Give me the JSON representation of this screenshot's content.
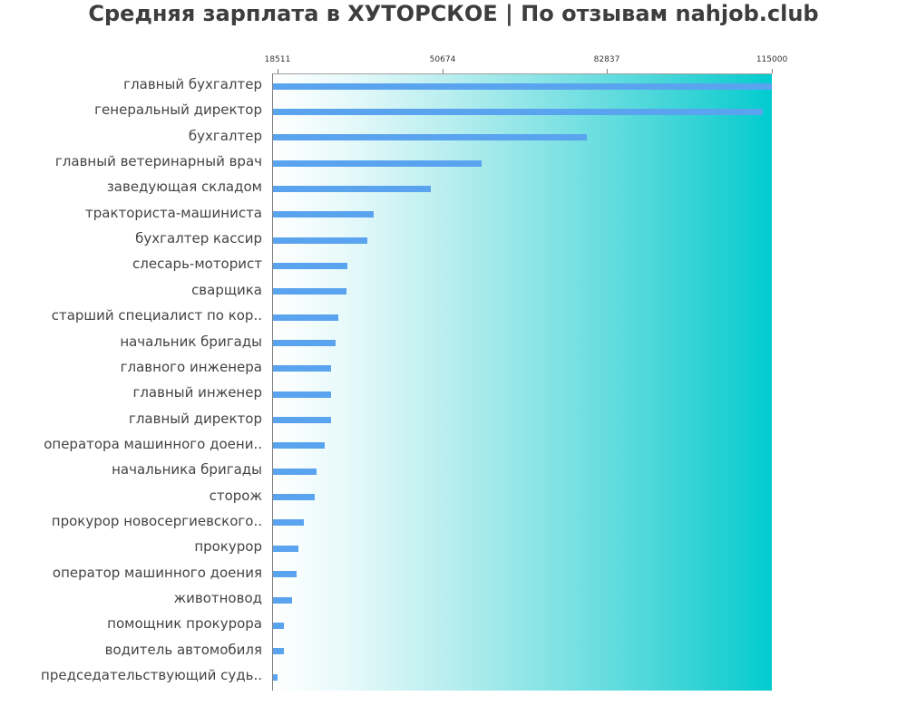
{
  "title": "Средняя зарплата в ХУТОРСКОЕ | По отзывам nahjob.club",
  "colors": {
    "bar": "#5aa4ef",
    "gradient_start": "#ffffff",
    "gradient_end": "#00cccf",
    "axis": "#808080",
    "label_text": "#444444",
    "title_text": "#3d3d3d"
  },
  "axis": {
    "ticks": [
      {
        "label": "18511",
        "value": 18511
      },
      {
        "label": "50674",
        "value": 50674
      },
      {
        "label": "82837",
        "value": 82837
      },
      {
        "label": "115000",
        "value": 115000
      }
    ]
  },
  "chart_data": {
    "type": "bar",
    "orientation": "horizontal",
    "title": "Средняя зарплата в ХУТОРСКОЕ | По отзывам nahjob.club",
    "xlabel": "",
    "ylabel": "",
    "xlim": [
      17450,
      115000
    ],
    "x_ticks": [
      18511,
      50674,
      82837,
      115000
    ],
    "grid": false,
    "legend": null,
    "categories": [
      "главный бухгалтер",
      "генеральный директор",
      "бухгалтер",
      "главный ветеринарный врач",
      "заведующая складом",
      "тракториста-машиниста",
      "бухгалтер кассир",
      "слесарь-моторист",
      "сварщика",
      "старший специалист по кор..",
      "начальник бригады",
      "главного инженера",
      "главный инженер",
      "главный директор",
      "оператора машинного доени..",
      "начальника бригады",
      "сторож",
      "прокурор новосергиевского..",
      "прокурор",
      "оператор машинного доения",
      "животновод",
      "помощник прокурора",
      "водитель автомобиля",
      "председательствующий судь.."
    ],
    "values": [
      115000,
      113200,
      78800,
      58400,
      48400,
      37200,
      36000,
      32100,
      31900,
      30300,
      29800,
      28900,
      28900,
      28900,
      27800,
      26200,
      25700,
      23700,
      22500,
      22300,
      21300,
      19700,
      19700,
      18600
    ]
  }
}
